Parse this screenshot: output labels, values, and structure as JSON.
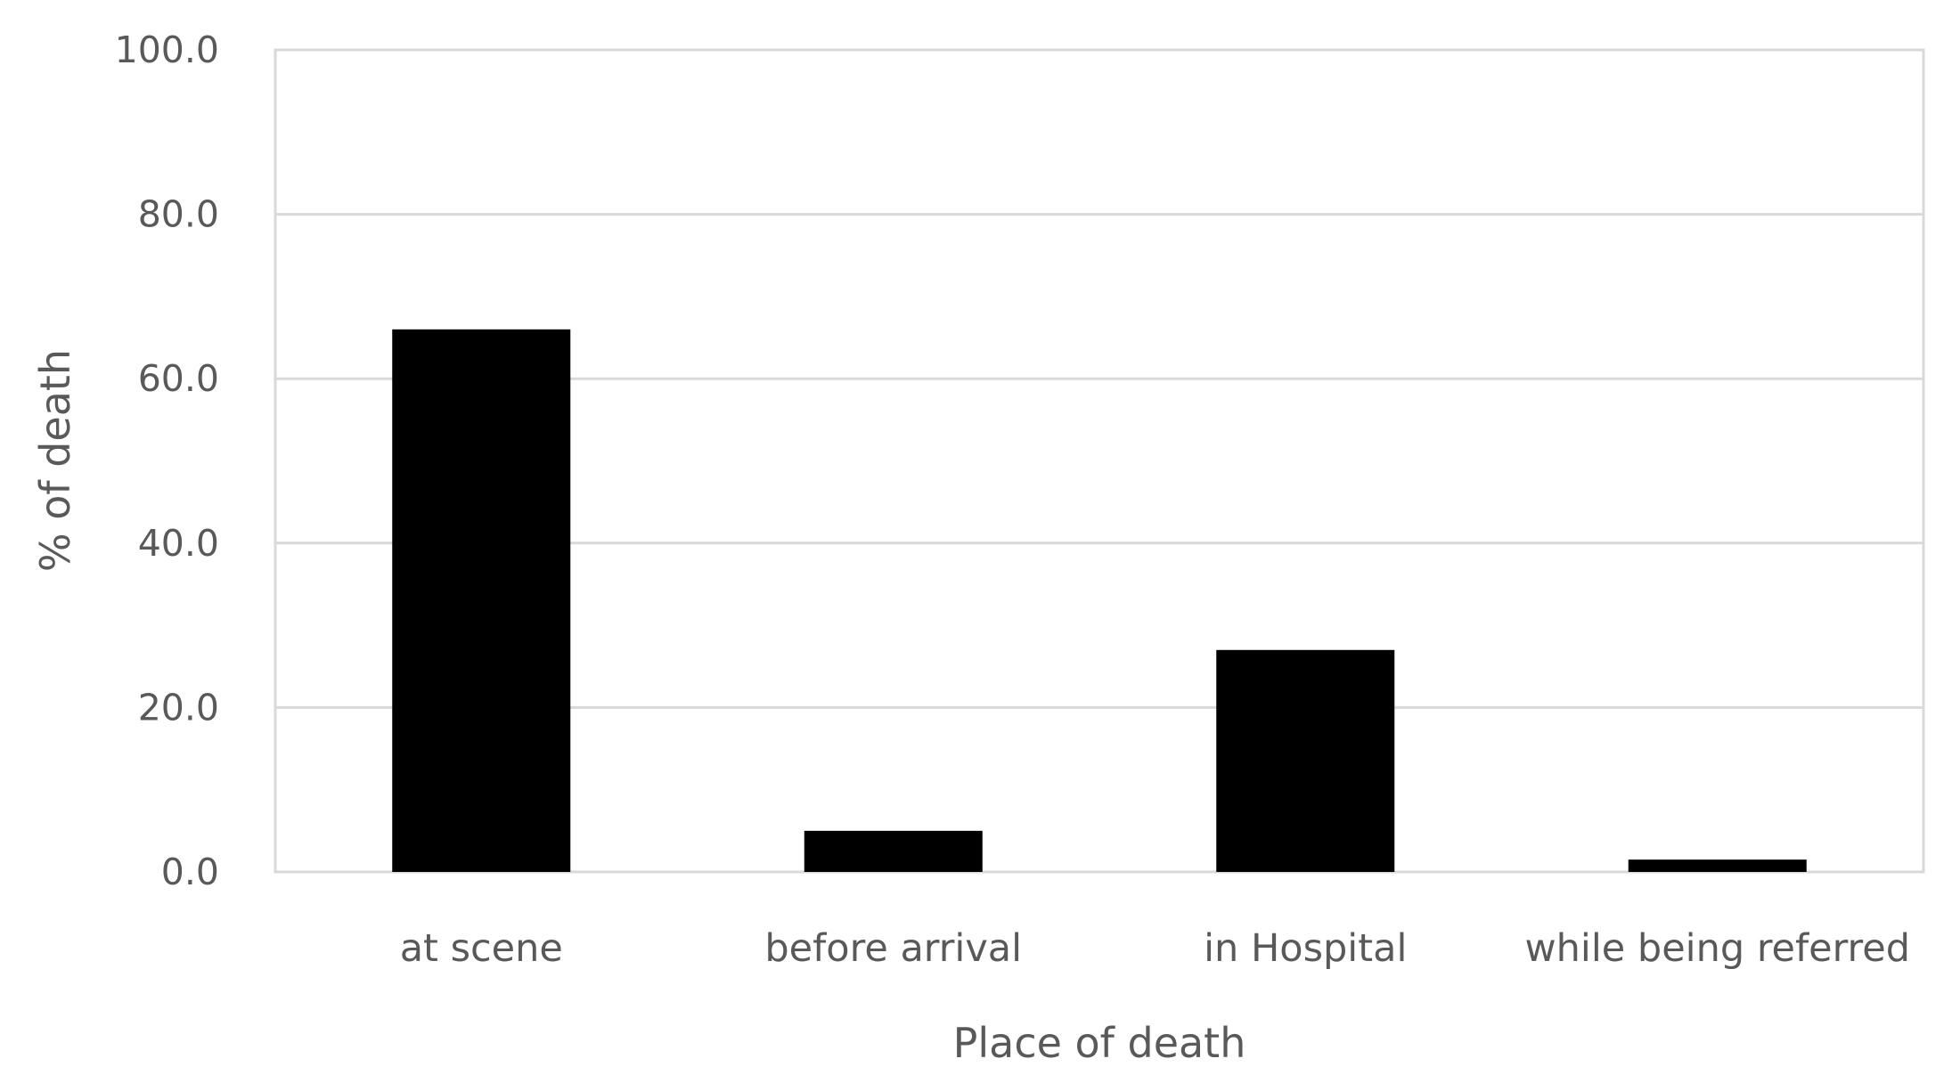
{
  "chart_data": {
    "type": "bar",
    "categories": [
      "at scene",
      "before arrival",
      "in Hospital",
      "while being referred"
    ],
    "values": [
      66.0,
      5.0,
      27.0,
      1.5
    ],
    "title": "",
    "xlabel": "Place of death",
    "ylabel": "% of death",
    "ylim": [
      0,
      100
    ],
    "yticks": [
      0,
      20,
      40,
      60,
      80,
      100
    ],
    "ytick_labels": [
      "0.0",
      "20.0",
      "40.0",
      "60.0",
      "80.0",
      "100.0"
    ],
    "grid": true,
    "legend": "none",
    "bar_color": "#000000",
    "grid_color": "#d9d9d9",
    "text_color": "#595959"
  }
}
